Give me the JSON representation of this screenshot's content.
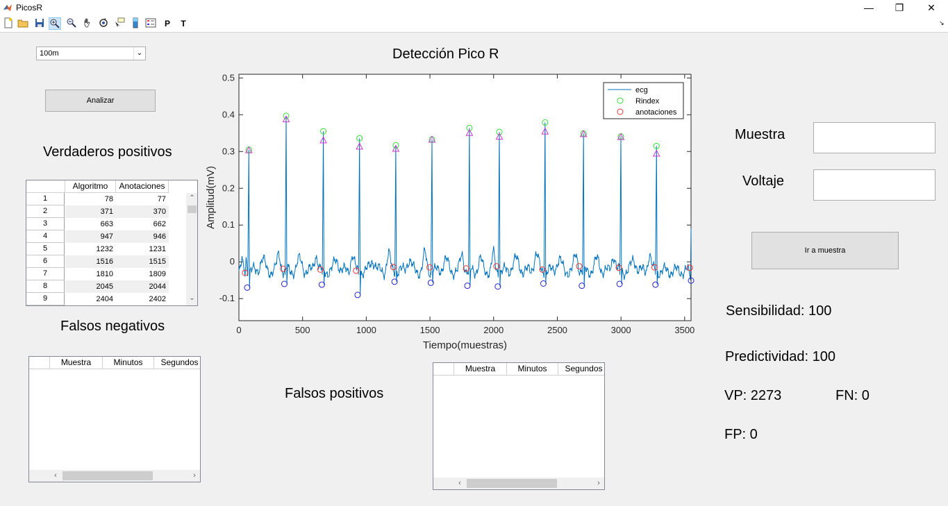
{
  "window": {
    "title": "PicosR",
    "minimize_glyph": "—",
    "restore_glyph": "❐",
    "close_glyph": "✕"
  },
  "toolbar": {
    "icons": [
      "new-icon",
      "open-icon",
      "save-icon",
      "zoom-in-icon",
      "zoom-out-icon",
      "pan-icon",
      "rotate-icon",
      "data-cursor-icon",
      "colorbar-icon",
      "legend-icon",
      "p-text-icon",
      "t-text-icon"
    ],
    "p_label": "P",
    "t_label": "T"
  },
  "record_select": {
    "value": "100m"
  },
  "analyze_button": {
    "label": "Analizar"
  },
  "true_positives": {
    "title": "Verdaderos positivos",
    "columns": [
      "Algoritmo",
      "Anotaciones"
    ],
    "rows": [
      {
        "n": "1",
        "alg": "78",
        "ann": "77"
      },
      {
        "n": "2",
        "alg": "371",
        "ann": "370"
      },
      {
        "n": "3",
        "alg": "663",
        "ann": "662"
      },
      {
        "n": "4",
        "alg": "947",
        "ann": "946"
      },
      {
        "n": "5",
        "alg": "1232",
        "ann": "1231"
      },
      {
        "n": "6",
        "alg": "1516",
        "ann": "1515"
      },
      {
        "n": "7",
        "alg": "1810",
        "ann": "1809"
      },
      {
        "n": "8",
        "alg": "2045",
        "ann": "2044"
      },
      {
        "n": "9",
        "alg": "2404",
        "ann": "2402"
      }
    ]
  },
  "false_negatives": {
    "title": "Falsos negativos",
    "columns": [
      "Muestra",
      "Minutos",
      "Segundos"
    ]
  },
  "false_positives": {
    "title": "Falsos positivos",
    "columns": [
      "Muestra",
      "Minutos",
      "Segundos"
    ]
  },
  "chart_data": {
    "type": "line",
    "title": "Detección Pico R",
    "xlabel": "Tiempo(muestras)",
    "ylabel": "Amplitud(mV)",
    "xlim": [
      0,
      3550
    ],
    "ylim": [
      -0.16,
      0.51
    ],
    "xticks": [
      "0",
      "500",
      "1000",
      "1500",
      "2000",
      "2500",
      "3000",
      "3500"
    ],
    "yticks": [
      "0.5",
      "0.4",
      "0.3",
      "0.2",
      "0.1",
      "0",
      "-0.1"
    ],
    "legend": {
      "placement": "top-right",
      "entries": [
        "ecg",
        "Rindex",
        "anotaciones"
      ]
    },
    "colors": {
      "ecg": "#0072bd",
      "rindex": "#33dd33",
      "anotaciones": "#ee3333",
      "triangles": "#cc33cc",
      "minima": "#2222cc"
    },
    "r_peaks": [
      {
        "x": 78,
        "y": 0.305
      },
      {
        "x": 371,
        "y": 0.397
      },
      {
        "x": 663,
        "y": 0.355
      },
      {
        "x": 947,
        "y": 0.336
      },
      {
        "x": 1232,
        "y": 0.317
      },
      {
        "x": 1516,
        "y": 0.333
      },
      {
        "x": 1810,
        "y": 0.364
      },
      {
        "x": 2045,
        "y": 0.353
      },
      {
        "x": 2404,
        "y": 0.379
      },
      {
        "x": 2706,
        "y": 0.349
      },
      {
        "x": 2999,
        "y": 0.341
      },
      {
        "x": 3279,
        "y": 0.315
      }
    ],
    "triangle_markers": [
      {
        "x": 78,
        "y": 0.303
      },
      {
        "x": 371,
        "y": 0.387
      },
      {
        "x": 663,
        "y": 0.33
      },
      {
        "x": 947,
        "y": 0.313
      },
      {
        "x": 1232,
        "y": 0.307
      },
      {
        "x": 1516,
        "y": 0.332
      },
      {
        "x": 1810,
        "y": 0.35
      },
      {
        "x": 2045,
        "y": 0.34
      },
      {
        "x": 2404,
        "y": 0.354
      },
      {
        "x": 2706,
        "y": 0.347
      },
      {
        "x": 2999,
        "y": 0.339
      },
      {
        "x": 3279,
        "y": 0.294
      }
    ],
    "annotations": [
      {
        "x": 48,
        "y": -0.03
      },
      {
        "x": 347,
        "y": -0.019
      },
      {
        "x": 640,
        "y": -0.021
      },
      {
        "x": 920,
        "y": -0.024
      },
      {
        "x": 1213,
        "y": -0.014
      },
      {
        "x": 1497,
        "y": -0.015
      },
      {
        "x": 1784,
        "y": -0.018
      },
      {
        "x": 2023,
        "y": -0.012
      },
      {
        "x": 2383,
        "y": -0.021
      },
      {
        "x": 2672,
        "y": -0.012
      },
      {
        "x": 2983,
        "y": -0.016
      },
      {
        "x": 3263,
        "y": -0.015
      },
      {
        "x": 3540,
        "y": -0.016
      }
    ],
    "minima": [
      {
        "x": 65,
        "y": -0.07
      },
      {
        "x": 357,
        "y": -0.06
      },
      {
        "x": 651,
        "y": -0.062
      },
      {
        "x": 932,
        "y": -0.09
      },
      {
        "x": 1222,
        "y": -0.054
      },
      {
        "x": 1507,
        "y": -0.057
      },
      {
        "x": 1794,
        "y": -0.065
      },
      {
        "x": 2033,
        "y": -0.067
      },
      {
        "x": 2391,
        "y": -0.059
      },
      {
        "x": 2693,
        "y": -0.065
      },
      {
        "x": 2989,
        "y": -0.06
      },
      {
        "x": 3271,
        "y": -0.062
      },
      {
        "x": 3550,
        "y": -0.051
      }
    ]
  },
  "muestra": {
    "label": "Muestra",
    "value": ""
  },
  "voltaje": {
    "label": "Voltaje",
    "value": ""
  },
  "go_button": {
    "label": "Ir a muestra"
  },
  "stats": {
    "sensibilidad": "Sensibilidad: 100",
    "predictividad": "Predictividad: 100",
    "vp": "VP: 2273",
    "fn": "FN: 0",
    "fp": "FP: 0"
  }
}
